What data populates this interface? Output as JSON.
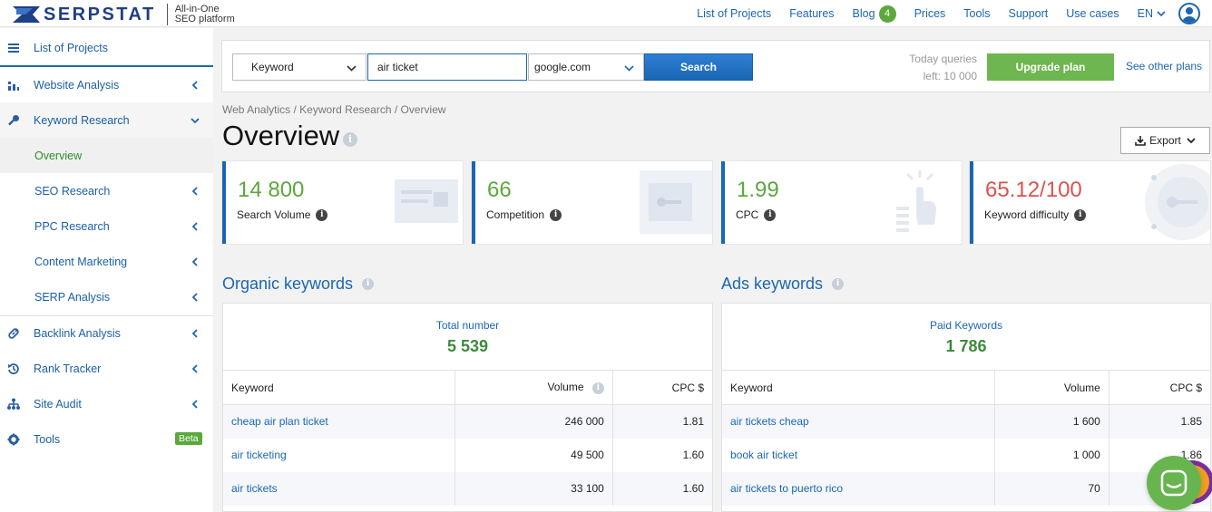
{
  "header": {
    "brand": "SERPSTAT",
    "tagline_line1": "All-in-One",
    "tagline_line2": "SEO platform",
    "nav": {
      "list_of_projects": "List of Projects",
      "features": "Features",
      "blog": "Blog",
      "blog_badge": "4",
      "prices": "Prices",
      "tools": "Tools",
      "support": "Support",
      "use_cases": "Use cases"
    },
    "language": "EN"
  },
  "sidebar": {
    "list_of_projects": "List of Projects",
    "website_analysis": "Website Analysis",
    "keyword_research": "Keyword Research",
    "overview": "Overview",
    "seo_research": "SEO Research",
    "ppc_research": "PPC Research",
    "content_marketing": "Content Marketing",
    "serp_analysis": "SERP Analysis",
    "backlink_analysis": "Backlink Analysis",
    "rank_tracker": "Rank Tracker",
    "site_audit": "Site Audit",
    "tools": "Tools",
    "tools_badge": "Beta"
  },
  "search": {
    "type": "Keyword",
    "query": "air ticket",
    "engine": "google.com",
    "button": "Search",
    "queries_line1": "Today queries",
    "queries_line2": "left: 10 000",
    "upgrade": "Upgrade plan",
    "other_plans": "See other plans"
  },
  "breadcrumb": "Web Analytics / Keyword Research / Overview",
  "page_title": "Overview",
  "export": "Export",
  "metrics": [
    {
      "value": "14 800",
      "label": "Search Volume"
    },
    {
      "value": "66",
      "label": "Competition"
    },
    {
      "value": "1.99",
      "label": "CPC"
    },
    {
      "value": "65.12/100",
      "label": "Keyword difficulty"
    }
  ],
  "organic": {
    "title": "Organic keywords",
    "total_label": "Total number",
    "total_value": "5 539",
    "columns": {
      "keyword": "Keyword",
      "volume": "Volume",
      "cpc": "CPC $"
    },
    "rows": [
      {
        "keyword": "cheap air plan ticket",
        "volume": "246 000",
        "cpc": "1.81"
      },
      {
        "keyword": "air ticketing",
        "volume": "49 500",
        "cpc": "1.60"
      },
      {
        "keyword": "air tickets",
        "volume": "33 100",
        "cpc": "1.60"
      }
    ]
  },
  "ads": {
    "title": "Ads keywords",
    "total_label": "Paid Keywords",
    "total_value": "1 786",
    "columns": {
      "keyword": "Keyword",
      "volume": "Volume",
      "cpc": "CPC $"
    },
    "rows": [
      {
        "keyword": "air tickets cheap",
        "volume": "1 600",
        "cpc": "1.85"
      },
      {
        "keyword": "book air ticket",
        "volume": "1 000",
        "cpc": "1.86"
      },
      {
        "keyword": "air tickets to puerto rico",
        "volume": "70",
        "cpc": ""
      }
    ]
  },
  "colors": {
    "brand_blue": "#1b66b1",
    "accent_green": "#5ba83c",
    "difficulty_red": "#d9534f"
  }
}
